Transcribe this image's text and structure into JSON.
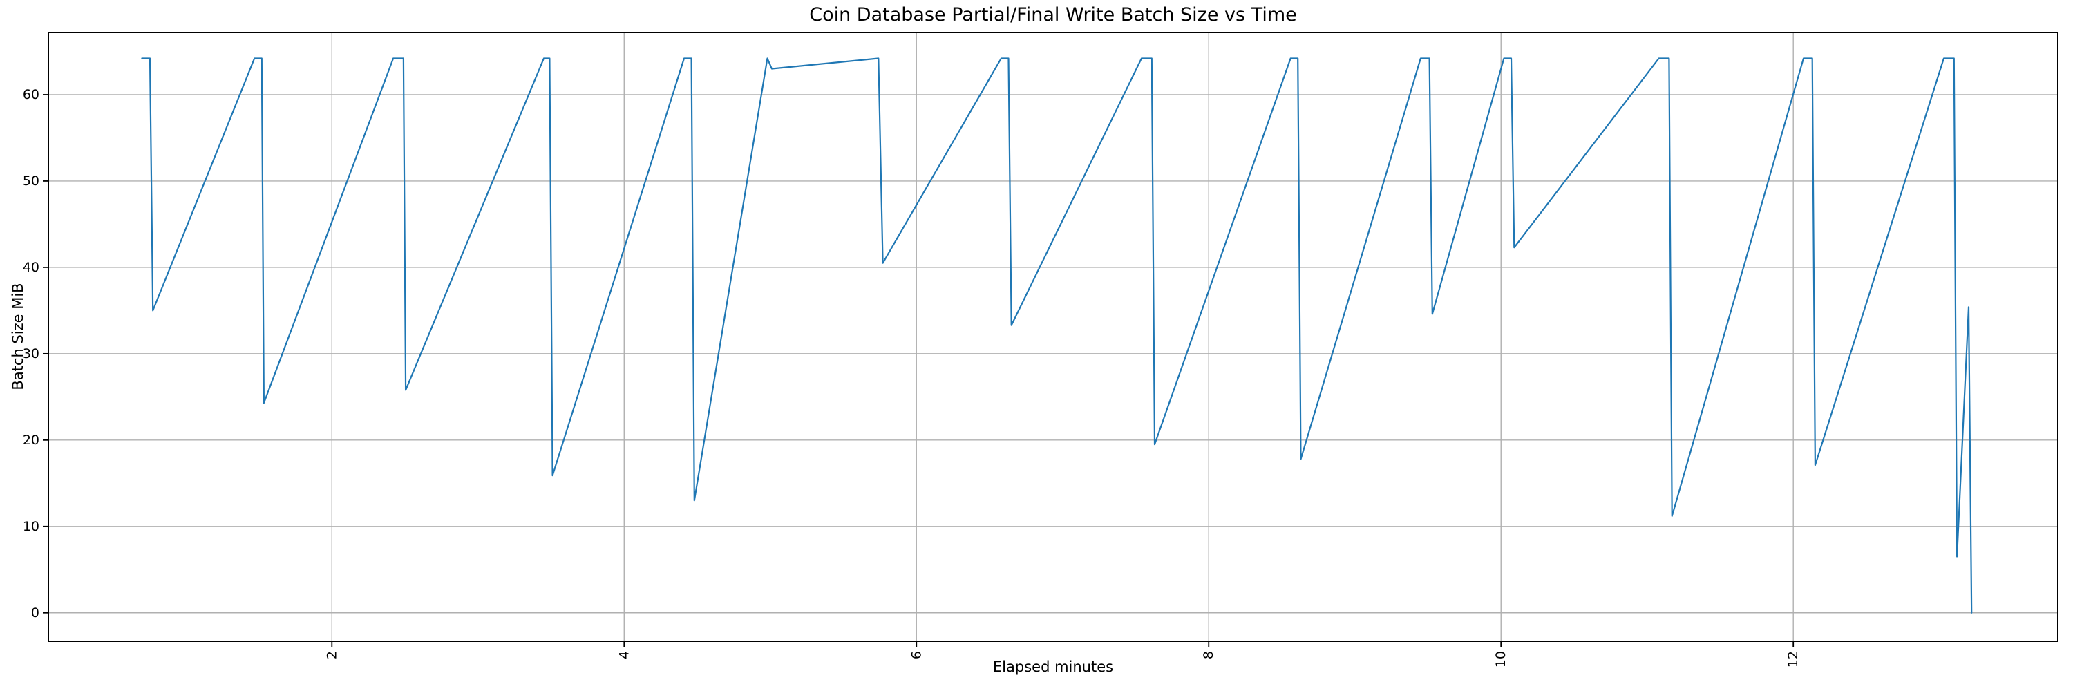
{
  "chart_data": {
    "type": "line",
    "title": "Coin Database Partial/Final Write Batch Size vs Time",
    "xlabel": "Elapsed minutes",
    "ylabel": "Batch Size MiB",
    "x_ticks": [
      "2",
      "4",
      "6",
      "8",
      "10",
      "12"
    ],
    "x_tick_values": [
      2,
      4,
      6,
      8,
      10,
      12
    ],
    "y_ticks": [
      "0",
      "10",
      "20",
      "30",
      "40",
      "50",
      "60"
    ],
    "y_tick_values": [
      0,
      10,
      20,
      30,
      40,
      50,
      60
    ],
    "xlim": [
      0.06,
      13.81
    ],
    "ylim": [
      -3.3,
      67.2
    ],
    "grid": true,
    "legend": "none",
    "line_color": "#1f77b4",
    "series": [
      {
        "name": "batch-size-mib",
        "points": [
          [
            0.7,
            64.2
          ],
          [
            0.755,
            64.2
          ],
          [
            0.775,
            35.0
          ],
          [
            1.47,
            64.2
          ],
          [
            1.52,
            64.2
          ],
          [
            1.535,
            24.3
          ],
          [
            2.42,
            64.2
          ],
          [
            2.49,
            64.2
          ],
          [
            2.505,
            25.8
          ],
          [
            3.45,
            64.2
          ],
          [
            3.49,
            64.2
          ],
          [
            3.51,
            15.9
          ],
          [
            4.41,
            64.2
          ],
          [
            4.46,
            64.2
          ],
          [
            4.48,
            13.0
          ],
          [
            4.98,
            64.2
          ],
          [
            5.01,
            63.0
          ],
          [
            5.74,
            64.2
          ],
          [
            5.77,
            40.5
          ],
          [
            6.58,
            64.2
          ],
          [
            6.63,
            64.2
          ],
          [
            6.65,
            33.3
          ],
          [
            7.54,
            64.2
          ],
          [
            7.61,
            64.2
          ],
          [
            7.63,
            19.5
          ],
          [
            8.56,
            64.2
          ],
          [
            8.61,
            64.2
          ],
          [
            8.63,
            17.8
          ],
          [
            9.45,
            64.2
          ],
          [
            9.51,
            64.2
          ],
          [
            9.53,
            34.6
          ],
          [
            10.02,
            64.2
          ],
          [
            10.07,
            64.2
          ],
          [
            10.09,
            42.3
          ],
          [
            11.08,
            64.2
          ],
          [
            11.15,
            64.2
          ],
          [
            11.17,
            11.2
          ],
          [
            12.07,
            64.2
          ],
          [
            12.13,
            64.2
          ],
          [
            12.15,
            17.1
          ],
          [
            13.03,
            64.2
          ],
          [
            13.1,
            64.2
          ],
          [
            13.12,
            6.5
          ],
          [
            13.2,
            35.4
          ],
          [
            13.22,
            0.0
          ]
        ]
      }
    ]
  },
  "style": {
    "background_color": "#ffffff",
    "grid_color": "#b0b0b0",
    "spine_color": "#000000",
    "tick_color": "#000000",
    "text_color": "#000000"
  }
}
